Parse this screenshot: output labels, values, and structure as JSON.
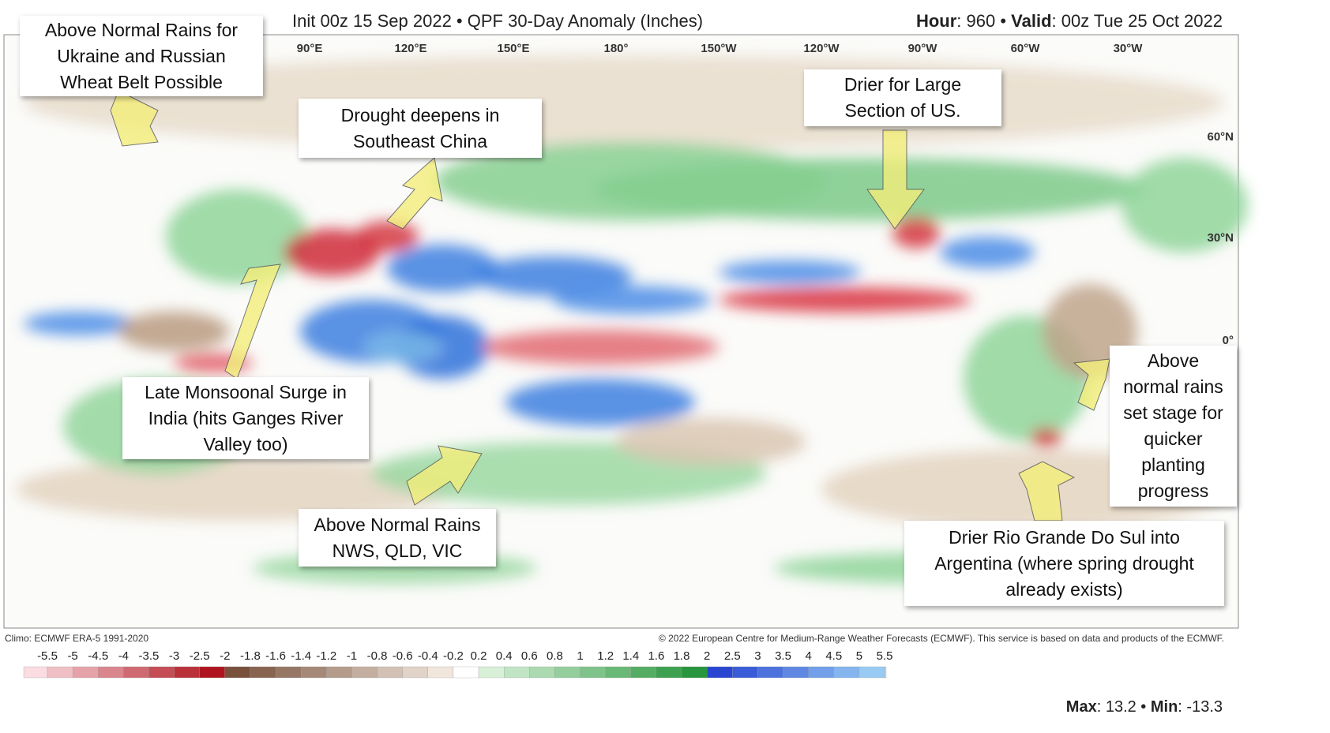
{
  "header": {
    "title": "Init 00z 15 Sep 2022 • QPF 30-Day Anomaly (Inches)",
    "hour_label": "Hour",
    "hour": ": 960 • ",
    "valid_label": "Valid",
    "valid": ": 00z Tue 25 Oct 2022"
  },
  "longitude_labels": [
    "90°E",
    "120°E",
    "150°E",
    "180°",
    "150°W",
    "120°W",
    "90°W",
    "60°W",
    "30°W"
  ],
  "latitude_labels": [
    "60°N",
    "30°N",
    "0°"
  ],
  "annotations": [
    {
      "lines": [
        "Above Normal Rains for",
        "Ukraine and Russian",
        "Wheat Belt Possible"
      ]
    },
    {
      "lines": [
        "Drought deepens in",
        "Southeast China"
      ]
    },
    {
      "lines": [
        "Drier for Large",
        "Section of US."
      ]
    },
    {
      "lines": [
        "Late Monsoonal Surge in",
        "India (hits Ganges River",
        "Valley too)"
      ]
    },
    {
      "lines": [
        "Above Normal Rains",
        "NWS, QLD, VIC"
      ]
    },
    {
      "lines": [
        "Above",
        "normal rains",
        "set stage for",
        "quicker",
        "planting",
        "progress"
      ]
    },
    {
      "lines": [
        "Drier Rio Grande Do Sul into",
        "Argentina (where spring drought",
        "already exists)"
      ]
    }
  ],
  "footer": {
    "climo": "Climo: ECMWF ERA-5 1991-2020",
    "copyright": "© 2022 European Centre for Medium-Range Weather Forecasts (ECMWF). This service is based on data and products of the ECMWF."
  },
  "colorbar": {
    "values": [
      -5.5,
      -5,
      -4.5,
      -4,
      -3.5,
      -3,
      -2.5,
      -2,
      -1.8,
      -1.6,
      -1.4,
      -1.2,
      -1,
      -0.8,
      -0.6,
      -0.4,
      -0.2,
      0.2,
      0.4,
      0.6,
      0.8,
      1,
      1.2,
      1.4,
      1.6,
      1.8,
      2,
      2.5,
      3,
      3.5,
      4,
      4.5,
      5,
      5.5
    ]
  },
  "stats": {
    "max_label": "Max",
    "max": ": 13.2 • ",
    "min_label": "Min",
    "min": ": -13.3"
  }
}
